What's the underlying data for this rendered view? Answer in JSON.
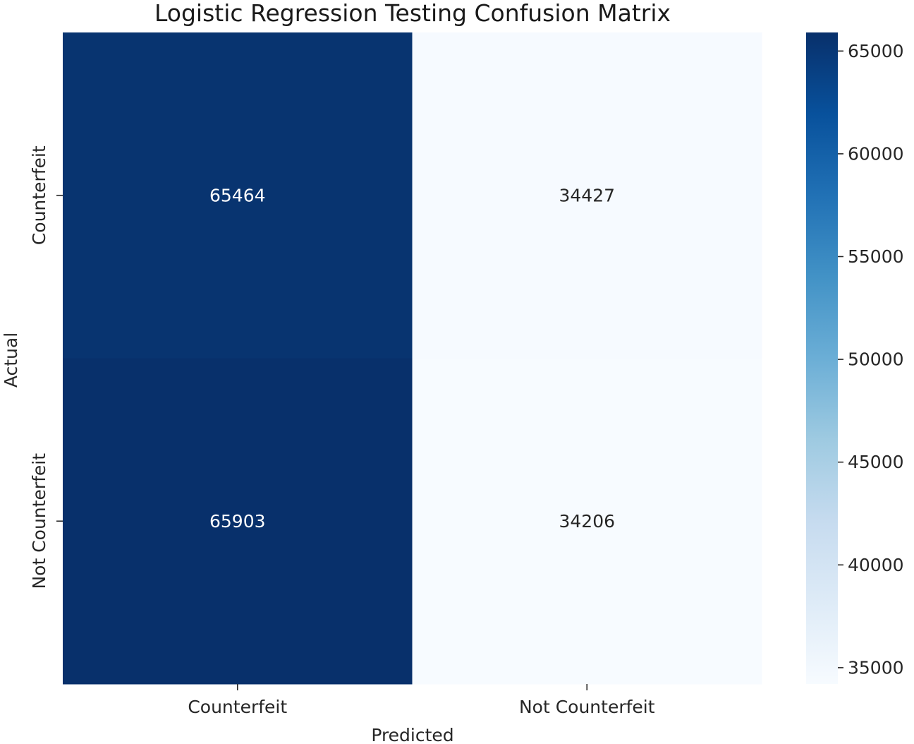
{
  "chart_data": {
    "type": "heatmap",
    "title": "Logistic Regression Testing Confusion Matrix",
    "xlabel": "Predicted",
    "ylabel": "Actual",
    "x_categories": [
      "Counterfeit",
      "Not Counterfeit"
    ],
    "y_categories": [
      "Counterfeit",
      "Not Counterfeit"
    ],
    "values": [
      [
        65464,
        34427
      ],
      [
        65903,
        34206
      ]
    ],
    "colormap": "Blues",
    "colorbar": {
      "range": [
        34206,
        65903
      ],
      "ticks": [
        35000,
        40000,
        45000,
        50000,
        55000,
        60000,
        65000
      ]
    },
    "annotation_colors": {
      "on_dark": "#ffffff",
      "on_light": "#262626"
    }
  }
}
